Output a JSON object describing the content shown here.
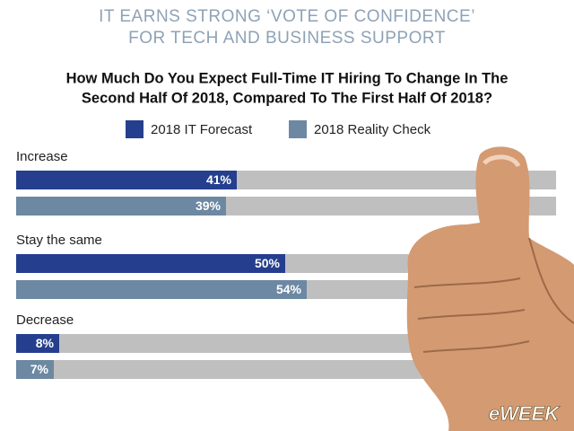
{
  "chart_data": {
    "type": "bar",
    "orientation": "horizontal",
    "title": [
      "IT EARNS STRONG ‘VOTE OF CONFIDENCE’",
      "FOR TECH AND BUSINESS SUPPORT"
    ],
    "subtitle": [
      "How Much Do You Expect Full-Time IT Hiring To Change In The",
      "Second Half Of 2018, Compared To The First Half Of 2018?"
    ],
    "categories": [
      "Increase",
      "Stay the same",
      "Decrease"
    ],
    "series": [
      {
        "name": "2018 IT Forecast",
        "color": "#253f8e",
        "values": [
          41,
          50,
          8
        ],
        "value_labels": [
          "41%",
          "50%",
          "8%"
        ]
      },
      {
        "name": "2018 Reality Check",
        "color": "#6d88a2",
        "values": [
          39,
          54,
          7
        ],
        "value_labels": [
          "39%",
          "54%",
          "7%"
        ]
      }
    ],
    "xlim": [
      0,
      100
    ],
    "track_color": "#bfbfbf",
    "logo": "eWEEK"
  }
}
